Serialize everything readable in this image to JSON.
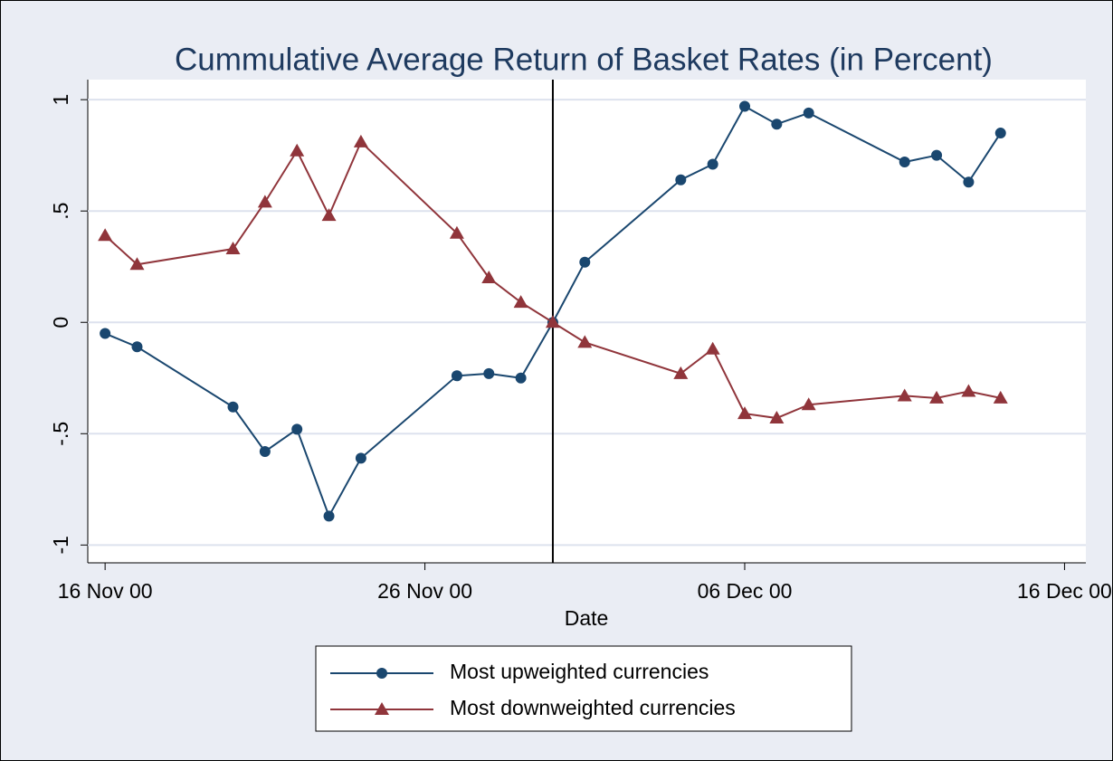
{
  "chart_data": {
    "type": "line",
    "title": "Cummulative Average Return of Basket Rates (in Percent)",
    "x_label": "Date",
    "x": [
      "2000-11-16",
      "2000-11-17",
      "2000-11-20",
      "2000-11-21",
      "2000-11-22",
      "2000-11-23",
      "2000-11-24",
      "2000-11-27",
      "2000-11-28",
      "2000-11-29",
      "2000-11-30",
      "2000-12-01",
      "2000-12-04",
      "2000-12-05",
      "2000-12-06",
      "2000-12-07",
      "2000-12-08",
      "2000-12-11",
      "2000-12-12",
      "2000-12-13",
      "2000-12-14"
    ],
    "series": [
      {
        "name": "Most upweighted currencies",
        "color": "#1a476f",
        "marker": "circle",
        "values": [
          -0.05,
          -0.11,
          -0.38,
          -0.58,
          -0.48,
          -0.87,
          -0.61,
          -0.24,
          -0.23,
          -0.25,
          0,
          0.27,
          0.64,
          0.71,
          0.97,
          0.89,
          0.94,
          0.72,
          0.75,
          0.63,
          0.85
        ]
      },
      {
        "name": "Most downweighted currencies",
        "color": "#90353b",
        "marker": "triangle",
        "values": [
          0.39,
          0.26,
          0.33,
          0.54,
          0.77,
          0.48,
          0.81,
          0.4,
          0.2,
          0.09,
          0,
          -0.09,
          -0.23,
          -0.12,
          -0.41,
          -0.43,
          -0.37,
          -0.33,
          -0.34,
          -0.31,
          -0.34
        ]
      }
    ],
    "xlim": [
      "2000-11-15T11:00:00",
      "2000-12-16T16:00:00"
    ],
    "xticks": [
      {
        "value": "2000-11-16",
        "label": "16 Nov 00"
      },
      {
        "value": "2000-11-26",
        "label": "26 Nov 00"
      },
      {
        "value": "2000-12-06",
        "label": "06 Dec 00"
      },
      {
        "value": "2000-12-16",
        "label": "16 Dec 00"
      }
    ],
    "ylim": [
      -1.08,
      1.09
    ],
    "yticks": [
      -1,
      {
        "value": -0.5,
        "label": "-.5"
      },
      0,
      {
        "value": 0.5,
        "label": ".5"
      },
      1
    ],
    "vline": "2000-11-30",
    "grid": true,
    "legend": "bottom"
  }
}
